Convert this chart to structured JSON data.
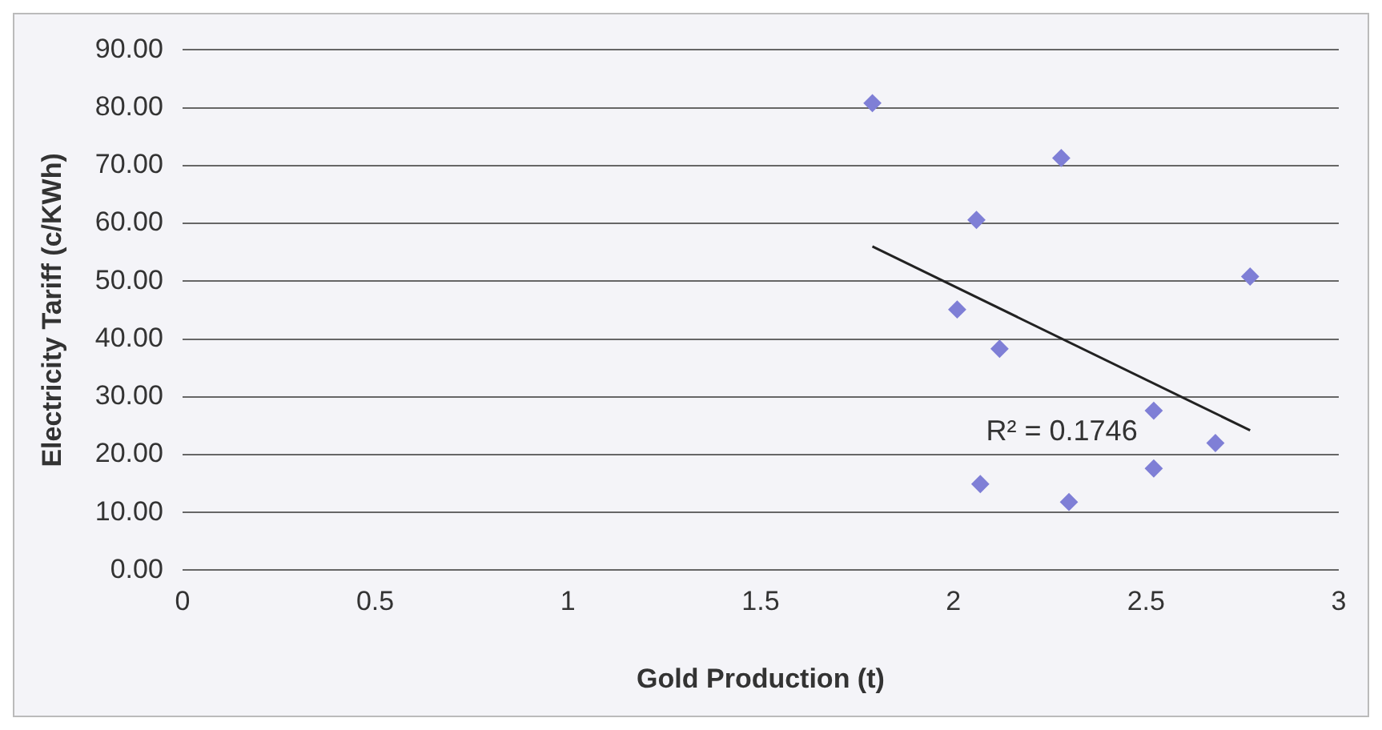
{
  "chart_data": {
    "type": "scatter",
    "xlabel": "Gold Production (t)",
    "ylabel": "Electricity Tariff (c/KWh)",
    "series": [
      {
        "color": "#7f7fd6",
        "marker": "diamond",
        "x": [
          1.79,
          2.28,
          2.06,
          2.77,
          2.01,
          2.12,
          2.52,
          2.68,
          2.52,
          2.07,
          2.3
        ],
        "values": [
          80.8,
          71.3,
          60.6,
          50.8,
          45.1,
          38.3,
          27.6,
          22.0,
          17.6,
          14.9,
          11.8
        ]
      },
      {
        "type": "line",
        "color": "#222222",
        "marker": "none",
        "x": [
          1.79,
          2.77
        ],
        "values": [
          56.0,
          24.2
        ]
      }
    ],
    "xlim": [
      0,
      3
    ],
    "xticks": [
      0,
      0.5,
      1,
      1.5,
      2,
      2.5,
      3
    ],
    "ylim": [
      0,
      90
    ],
    "yticks": [
      {
        "value": 0,
        "label": "0.00"
      },
      {
        "value": 10,
        "label": "10.00"
      },
      {
        "value": 20,
        "label": "20.00"
      },
      {
        "value": 30,
        "label": "30.00"
      },
      {
        "value": 40,
        "label": "40.00"
      },
      {
        "value": 50,
        "label": "50.00"
      },
      {
        "value": 60,
        "label": "60.00"
      },
      {
        "value": 70,
        "label": "70.00"
      },
      {
        "value": 80,
        "label": "80.00"
      },
      {
        "value": 90,
        "label": "90.00"
      }
    ],
    "grid": "y",
    "legend": false,
    "annotations": [
      "R² = 0.1746"
    ]
  }
}
